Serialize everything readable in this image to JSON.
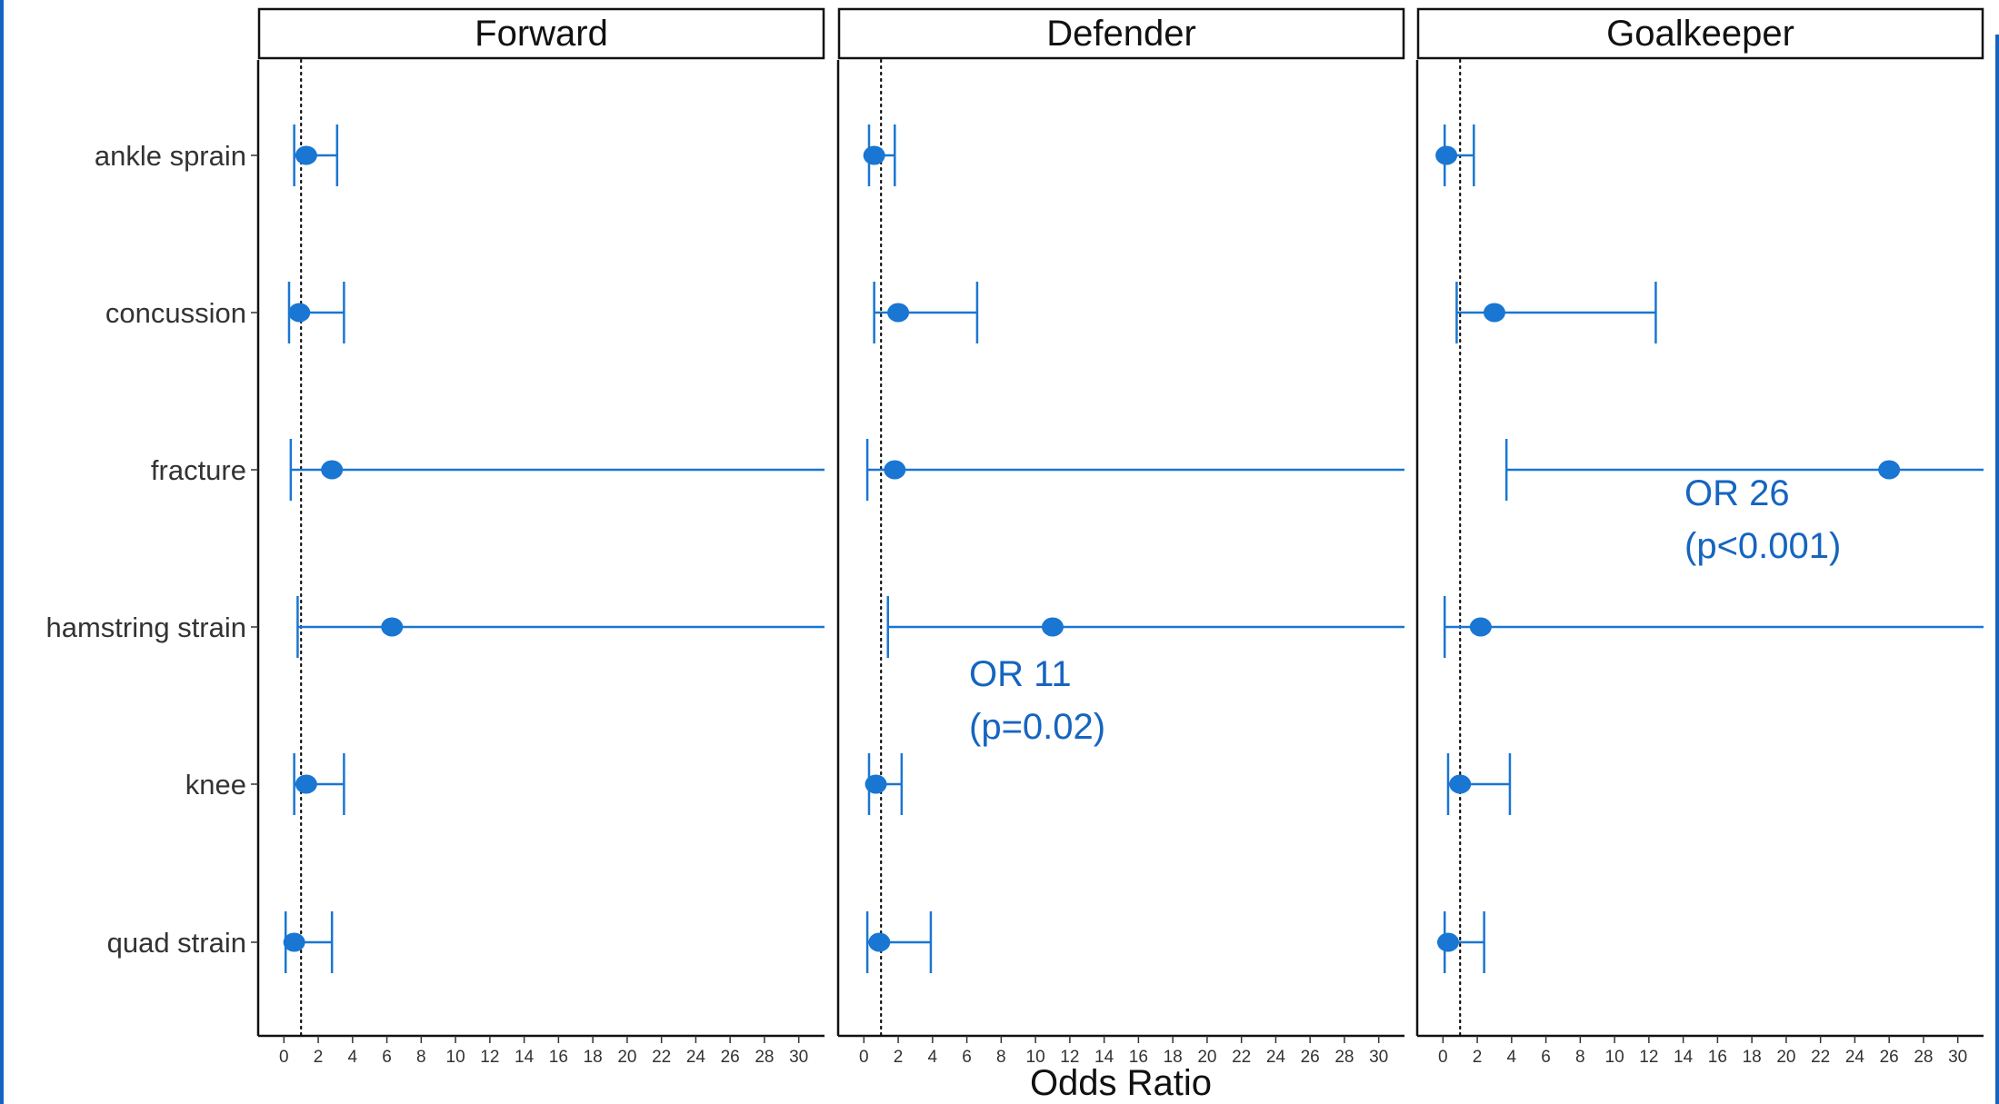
{
  "chart_data": {
    "type": "forest",
    "xlabel": "Odds Ratio",
    "xlim": [
      -1.5,
      31.5
    ],
    "xticks": [
      0,
      2,
      4,
      6,
      8,
      10,
      12,
      14,
      16,
      18,
      20,
      22,
      24,
      26,
      28,
      30
    ],
    "reference_line": 1,
    "categories": [
      "ankle sprain",
      "concussion",
      "fracture",
      "hamstring strain",
      "knee",
      "quad strain"
    ],
    "marker_color": "#1976d2",
    "annotation_color": "#1565c0",
    "panels": [
      {
        "title": "Forward",
        "points": [
          {
            "category": "ankle sprain",
            "or": 1.3,
            "lower": 0.6,
            "upper": 3.1
          },
          {
            "category": "concussion",
            "or": 0.9,
            "lower": 0.3,
            "upper": 3.5
          },
          {
            "category": "fracture",
            "or": 2.8,
            "lower": 0.4,
            "upper": 32
          },
          {
            "category": "hamstring strain",
            "or": 6.3,
            "lower": 0.8,
            "upper": 32
          },
          {
            "category": "knee",
            "or": 1.3,
            "lower": 0.6,
            "upper": 3.5
          },
          {
            "category": "quad strain",
            "or": 0.6,
            "lower": 0.1,
            "upper": 2.8
          }
        ],
        "annotations": []
      },
      {
        "title": "Defender",
        "points": [
          {
            "category": "ankle sprain",
            "or": 0.6,
            "lower": 0.3,
            "upper": 1.8
          },
          {
            "category": "concussion",
            "or": 2.0,
            "lower": 0.6,
            "upper": 6.6
          },
          {
            "category": "fracture",
            "or": 1.8,
            "lower": 0.2,
            "upper": 32
          },
          {
            "category": "hamstring strain",
            "or": 11,
            "lower": 1.4,
            "upper": 32
          },
          {
            "category": "knee",
            "or": 0.7,
            "lower": 0.3,
            "upper": 2.2
          },
          {
            "category": "quad strain",
            "or": 0.9,
            "lower": 0.2,
            "upper": 3.9
          }
        ],
        "annotations": [
          {
            "lines": [
              "OR 11",
              "(p=0.02)"
            ]
          }
        ]
      },
      {
        "title": "Goalkeeper",
        "points": [
          {
            "category": "ankle sprain",
            "or": 0.2,
            "lower": 0.1,
            "upper": 1.8
          },
          {
            "category": "concussion",
            "or": 3.0,
            "lower": 0.8,
            "upper": 12.4
          },
          {
            "category": "fracture",
            "or": 26,
            "lower": 3.7,
            "upper": 32
          },
          {
            "category": "hamstring strain",
            "or": 2.2,
            "lower": 0.1,
            "upper": 32
          },
          {
            "category": "knee",
            "or": 1.0,
            "lower": 0.3,
            "upper": 3.9
          },
          {
            "category": "quad strain",
            "or": 0.3,
            "lower": 0.1,
            "upper": 2.4
          }
        ],
        "annotations": [
          {
            "lines": [
              "OR 26",
              "(p<0.001)"
            ]
          }
        ]
      }
    ]
  }
}
